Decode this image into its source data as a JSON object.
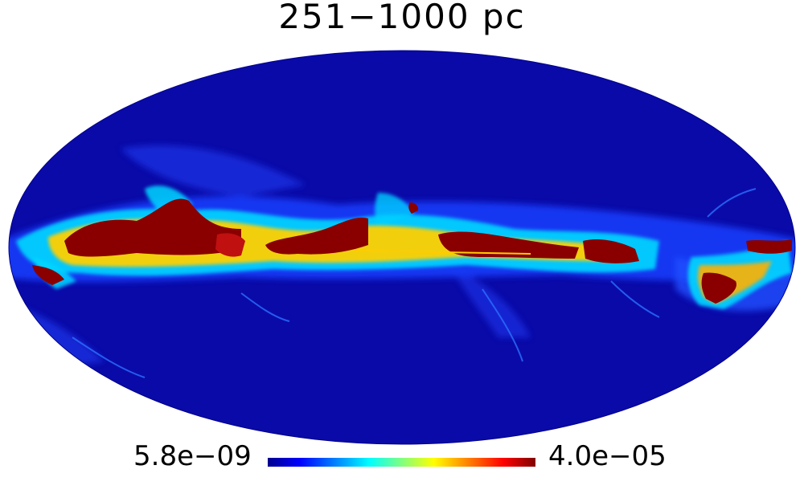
{
  "title": "251−1000 pc",
  "colorbar": {
    "min_label": "5.8e−09",
    "max_label": "4.0e−05",
    "colormap": "jet",
    "colors": [
      "#00008f",
      "#0000ff",
      "#00ffff",
      "#80ff80",
      "#ffff00",
      "#ff0000",
      "#800000"
    ]
  },
  "map": {
    "projection": "mollweide",
    "background_color": "#0a0aa8",
    "feature": "galactic-plane-band"
  }
}
